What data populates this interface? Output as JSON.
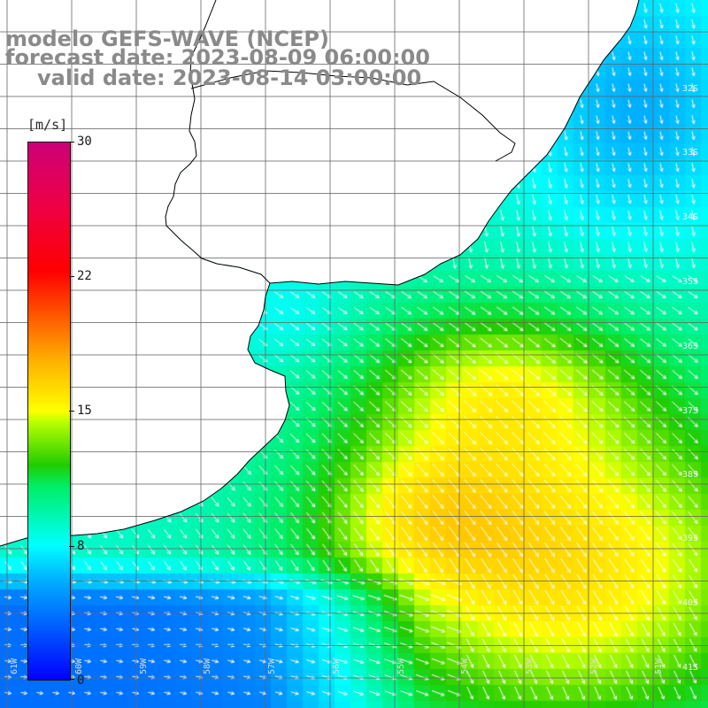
{
  "header": {
    "line1": "modelo GEFS-WAVE (NCEP)",
    "line2": "forecast date: 2023-08-09 06:00:00",
    "line3": "valid date: 2023-08-14 03:00:00"
  },
  "colorbar": {
    "unit_label": "[m/s]",
    "ticks": [
      "30",
      "22",
      "15",
      "8",
      "0"
    ],
    "tick_values": [
      30,
      22,
      15,
      8,
      0
    ],
    "min": 0,
    "max": 30,
    "colors": [
      "#0000ff",
      "#00aaff",
      "#00ffff",
      "#00ee66",
      "#22cc00",
      "#ffff00",
      "#ffaa00",
      "#ff0000",
      "#cc0077"
    ]
  },
  "map": {
    "land_color": "#ffffff",
    "grid_color": "#666666",
    "coastline_color": "#000000",
    "vector_color": "#ffffff",
    "lat_labels": [
      "32S",
      "33S",
      "34S",
      "35S",
      "36S",
      "37S",
      "38S",
      "39S",
      "40S",
      "41S"
    ],
    "lon_labels": [
      "61W",
      "60W",
      "59W",
      "58W",
      "57W",
      "56W",
      "55W",
      "54W",
      "53W",
      "52W",
      "51W"
    ]
  }
}
